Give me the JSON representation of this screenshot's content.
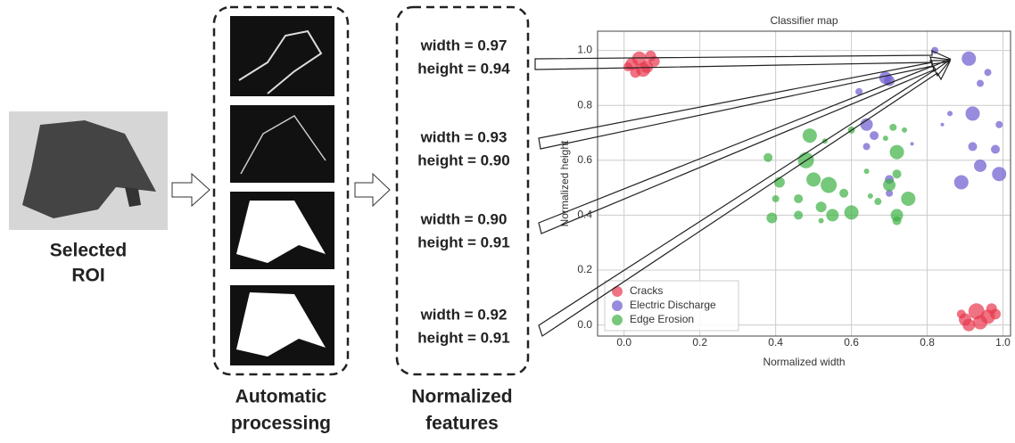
{
  "roi_label": [
    "Selected",
    "ROI"
  ],
  "steps": [
    {
      "lines": [
        "Automatic",
        "processing"
      ]
    },
    {
      "lines": [
        "Normalized",
        "features"
      ]
    }
  ],
  "features": [
    {
      "width": "width = 0.97",
      "height": "height = 0.94"
    },
    {
      "width": "width = 0.93",
      "height": "height = 0.90"
    },
    {
      "width": "width = 0.90",
      "height": "height = 0.91"
    },
    {
      "width": "width = 0.92",
      "height": "height = 0.91"
    }
  ],
  "chart_data": {
    "type": "scatter",
    "title": "Classifier map",
    "x_label": "Normalized width",
    "y_label": "Normalized height",
    "xlim": [
      -0.07,
      1.02
    ],
    "ylim": [
      -0.04,
      1.07
    ],
    "xticks": [
      {
        "value": 0,
        "label": "0.0"
      },
      {
        "value": 0.2,
        "label": "0.2"
      },
      {
        "value": 0.4,
        "label": "0.4"
      },
      {
        "value": 0.6,
        "label": "0.6"
      },
      {
        "value": 0.8,
        "label": "0.8"
      },
      {
        "value": 1,
        "label": "1.0"
      }
    ],
    "yticks": [
      {
        "value": 0,
        "label": "0.0"
      },
      {
        "value": 0.2,
        "label": "0.2"
      },
      {
        "value": 0.4,
        "label": "0.4"
      },
      {
        "value": 0.6,
        "label": "0.6"
      },
      {
        "value": 0.8,
        "label": "0.8"
      },
      {
        "value": 1,
        "label": "1.0"
      }
    ],
    "grid": true,
    "legend": "lower left",
    "series": [
      {
        "name": "Cracks",
        "color": "#e8374f",
        "x": [
          0.02,
          0.04,
          0.06,
          0.08,
          0.03,
          0.05,
          0.07,
          0.01,
          0.9,
          0.93,
          0.96,
          0.98,
          0.91,
          0.94,
          0.97,
          0.89
        ],
        "y": [
          0.95,
          0.97,
          0.94,
          0.96,
          0.92,
          0.93,
          0.98,
          0.94,
          0.02,
          0.05,
          0.03,
          0.04,
          0.0,
          0.01,
          0.06,
          0.04
        ],
        "sizes": [
          7,
          8,
          7,
          6,
          6,
          8,
          6,
          5,
          7,
          9,
          8,
          6,
          7,
          8,
          6,
          5
        ]
      },
      {
        "name": "Electric Discharge",
        "color": "#6a5acd",
        "x": [
          0.82,
          0.91,
          0.96,
          0.94,
          0.7,
          0.69,
          0.62,
          0.64,
          0.66,
          0.86,
          0.92,
          0.84,
          0.99,
          0.92,
          0.98,
          0.94,
          0.99,
          0.89,
          0.76,
          0.7,
          0.7,
          0.64
        ],
        "y": [
          1.0,
          0.97,
          0.92,
          0.88,
          0.89,
          0.9,
          0.85,
          0.73,
          0.69,
          0.77,
          0.77,
          0.73,
          0.73,
          0.65,
          0.64,
          0.58,
          0.55,
          0.52,
          0.66,
          0.53,
          0.48,
          0.65
        ],
        "sizes": [
          4,
          8,
          4,
          4,
          6,
          7,
          4,
          7,
          5,
          3,
          8,
          2,
          4,
          5,
          5,
          7,
          8,
          8,
          2,
          5,
          4,
          4
        ]
      },
      {
        "name": "Edge Erosion",
        "color": "#3cb043",
        "x": [
          0.49,
          0.53,
          0.6,
          0.71,
          0.74,
          0.69,
          0.38,
          0.48,
          0.72,
          0.5,
          0.41,
          0.46,
          0.54,
          0.58,
          0.64,
          0.7,
          0.72,
          0.67,
          0.75,
          0.72,
          0.6,
          0.52,
          0.46,
          0.39,
          0.4,
          0.52,
          0.72,
          0.65,
          0.55
        ],
        "y": [
          0.69,
          0.67,
          0.71,
          0.72,
          0.71,
          0.68,
          0.61,
          0.6,
          0.63,
          0.53,
          0.52,
          0.46,
          0.51,
          0.48,
          0.56,
          0.51,
          0.55,
          0.45,
          0.46,
          0.4,
          0.41,
          0.43,
          0.4,
          0.39,
          0.46,
          0.38,
          0.38,
          0.47,
          0.4
        ],
        "sizes": [
          8,
          3,
          4,
          4,
          3,
          3,
          5,
          9,
          8,
          8,
          6,
          5,
          9,
          5,
          3,
          7,
          5,
          4,
          8,
          7,
          8,
          6,
          5,
          6,
          4,
          3,
          5,
          3,
          7
        ]
      }
    ]
  }
}
